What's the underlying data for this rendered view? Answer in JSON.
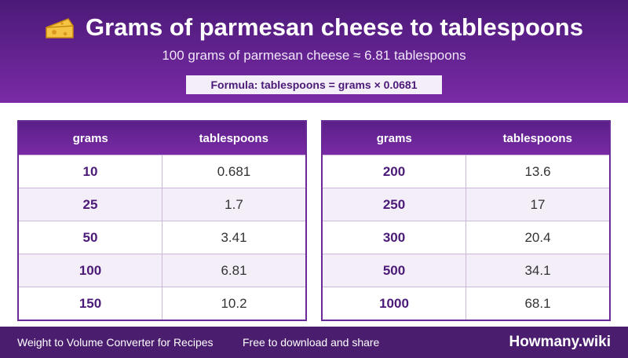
{
  "header": {
    "title": "Grams of parmesan cheese to tablespoons",
    "subtitle": "100 grams of parmesan cheese ≈ 6.81 tablespoons",
    "formula": "Formula: tablespoons = grams × 0.0681"
  },
  "tables": [
    {
      "columns": [
        "grams",
        "tablespoons"
      ],
      "rows": [
        [
          "10",
          "0.681"
        ],
        [
          "25",
          "1.7"
        ],
        [
          "50",
          "3.41"
        ],
        [
          "100",
          "6.81"
        ],
        [
          "150",
          "10.2"
        ]
      ]
    },
    {
      "columns": [
        "grams",
        "tablespoons"
      ],
      "rows": [
        [
          "200",
          "13.6"
        ],
        [
          "250",
          "17"
        ],
        [
          "300",
          "20.4"
        ],
        [
          "500",
          "34.1"
        ],
        [
          "1000",
          "68.1"
        ]
      ]
    }
  ],
  "footer": {
    "left": "Weight to Volume Converter for Recipes",
    "middle": "Free to download and share",
    "brand": "Howmany.wiki"
  }
}
